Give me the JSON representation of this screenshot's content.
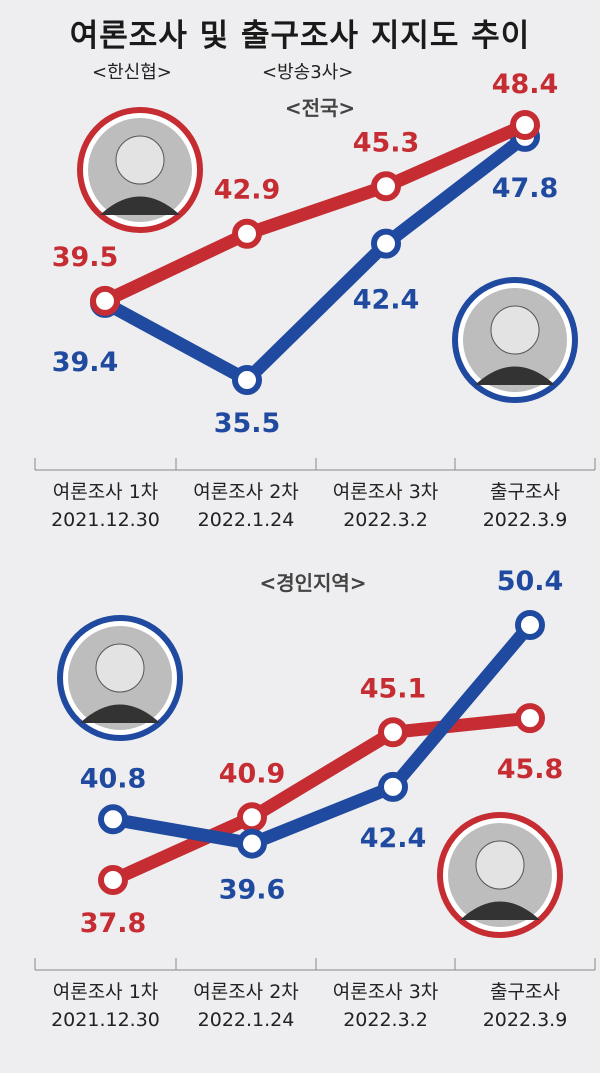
{
  "title": "여론조사 및 출구조사 지지도 추이",
  "sources": {
    "left": "<한신협>",
    "right": "<방송3사>"
  },
  "colors": {
    "red": "#c62d33",
    "blue": "#1f4aa0"
  },
  "chart_data": [
    {
      "type": "line",
      "title": "<전국>",
      "categories": [
        [
          "여론조사 1차",
          "2021.12.30"
        ],
        [
          "여론조사 2차",
          "2022.1.24"
        ],
        [
          "여론조사 3차",
          "2022.3.2"
        ],
        [
          "출구조사",
          "2022.3.9"
        ]
      ],
      "series": [
        {
          "color": "red",
          "values": [
            39.5,
            42.9,
            45.3,
            48.4
          ]
        },
        {
          "color": "blue",
          "values": [
            39.4,
            35.5,
            42.4,
            47.8
          ]
        }
      ]
    },
    {
      "type": "line",
      "title": "<경인지역>",
      "categories": [
        [
          "여론조사 1차",
          "2021.12.30"
        ],
        [
          "여론조사 2차",
          "2022.1.24"
        ],
        [
          "여론조사 3차",
          "2022.3.2"
        ],
        [
          "출구조사",
          "2022.3.9"
        ]
      ],
      "series": [
        {
          "color": "red",
          "values": [
            37.8,
            40.9,
            45.1,
            45.8
          ]
        },
        {
          "color": "blue",
          "values": [
            40.8,
            39.6,
            42.4,
            50.4
          ]
        }
      ]
    }
  ]
}
